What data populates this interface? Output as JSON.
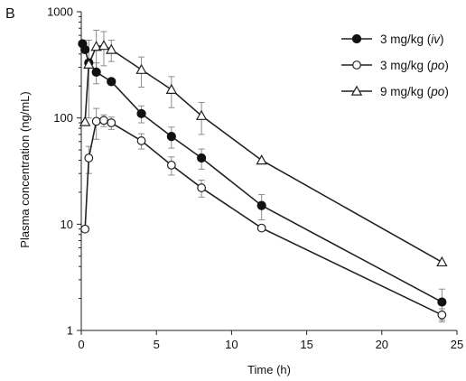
{
  "panel_label": "B",
  "chart_data": {
    "type": "line",
    "xlabel": "Time (h)",
    "ylabel": "Plasma concentration (ng/mL)",
    "xlim": [
      0,
      25
    ],
    "ylim": [
      1,
      1000
    ],
    "yscale": "log",
    "xticks": [
      0,
      5,
      10,
      15,
      20,
      25
    ],
    "yticks": [
      1,
      10,
      100,
      1000
    ],
    "grid": false,
    "legend_position": "top-right",
    "series": [
      {
        "name": "3 mg/kg (iv)",
        "name_parts": [
          "3 mg/kg (",
          "iv",
          ")"
        ],
        "marker": "filled-circle",
        "x": [
          0.083,
          0.25,
          0.5,
          1,
          2,
          4,
          6,
          8,
          12,
          24
        ],
        "y": [
          500,
          440,
          330,
          270,
          220,
          110,
          67,
          42,
          15,
          1.85
        ],
        "err": [
          null,
          null,
          null,
          60,
          null,
          20,
          15,
          9,
          4,
          0.6
        ]
      },
      {
        "name": "3 mg/kg (po)",
        "name_parts": [
          "3 mg/kg (",
          "po",
          ")"
        ],
        "marker": "open-circle",
        "x": [
          0.25,
          0.5,
          1,
          1.5,
          2,
          4,
          6,
          8,
          12,
          24
        ],
        "y": [
          9,
          42,
          93,
          95,
          90,
          61,
          36,
          22,
          9.2,
          1.4
        ],
        "err": [
          null,
          12,
          30,
          12,
          12,
          10,
          7,
          4,
          null,
          0.2
        ]
      },
      {
        "name": "9 mg/kg (po)",
        "name_parts": [
          "9 mg/kg (",
          "po",
          ")"
        ],
        "marker": "open-triangle",
        "x": [
          0.25,
          0.5,
          1,
          1.5,
          2,
          4,
          6,
          8,
          12,
          24
        ],
        "y": [
          92,
          320,
          470,
          480,
          440,
          285,
          185,
          105,
          40,
          4.4
        ],
        "err": [
          null,
          220,
          200,
          170,
          100,
          90,
          60,
          35,
          null,
          null
        ]
      }
    ]
  }
}
